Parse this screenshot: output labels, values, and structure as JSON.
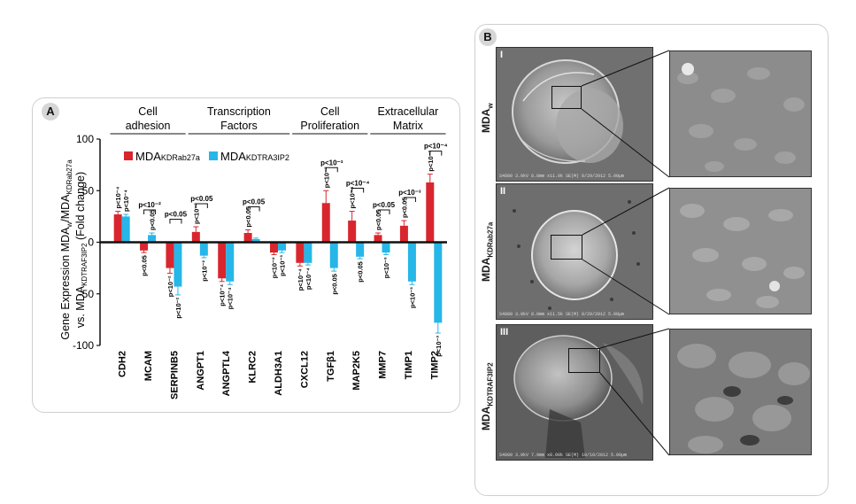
{
  "panel_a": {
    "badge": "A",
    "chart_data": {
      "type": "bar",
      "ylabel_line1": "Gene Expression MDA",
      "ylabel_line1_sub": "w",
      "ylabel_line1_rest": "/MDA",
      "ylabel_line1_sub2": "KDRab27a",
      "ylabel_line2": "vs. MDA",
      "ylabel_line2_sub": "KDTRAF3IP2",
      "ylabel_line2_rest": " (Fold change)",
      "ylim": [
        -100,
        100
      ],
      "yticks": [
        "100",
        "50",
        "0",
        "-50",
        "-100"
      ],
      "yticks_values": [
        100,
        50,
        0,
        -50,
        -100
      ],
      "categories": [
        "CDH2",
        "MCAM",
        "SERPINB5",
        "ANGPT1",
        "ANGPTL4",
        "KLRC2",
        "ALDH3A1",
        "CXCL12",
        "TGFβ1",
        "MAP2K5",
        "MMP7",
        "TIMP1",
        "TIMP2"
      ],
      "groups": [
        {
          "label_line1": "Cell",
          "label_line2": "adhesion",
          "from": 0,
          "to": 2
        },
        {
          "label_line1": "Transcription",
          "label_line2": "Factors",
          "from": 3,
          "to": 6
        },
        {
          "label_line1": "Cell",
          "label_line2": "Proliferation",
          "from": 7,
          "to": 9
        },
        {
          "label_line1": "Extracellular",
          "label_line2": "Matrix",
          "from": 10,
          "to": 12
        }
      ],
      "series": [
        {
          "name": "MDA",
          "name_sub": "KDRab27a",
          "color": "#d9262e",
          "values": [
            27,
            -8,
            -25,
            10,
            -35,
            9,
            -10,
            -20,
            38,
            21,
            7,
            16,
            58
          ],
          "errors": [
            3,
            2,
            5,
            5,
            3,
            3,
            2,
            3,
            12,
            9,
            2,
            5,
            8
          ],
          "pvalues": [
            "p<10⁻⁴",
            "p<0.05",
            "p<10⁻²",
            "p<10⁻²",
            "p<10⁻⁴",
            "p<0.05",
            "p<10⁻²",
            "p<10⁻⁴",
            "p<10⁻²",
            "p<10⁻⁴",
            "p<0.05",
            "p<0.05",
            "p<10⁻²"
          ]
        },
        {
          "name": "MDA",
          "name_sub": "KDTRA3IP2",
          "color": "#27b6e8",
          "values": [
            25,
            7,
            -43,
            -13,
            -38,
            3,
            -8,
            -20,
            -25,
            -14,
            -10,
            -38,
            -78
          ],
          "errors": [
            2,
            2,
            8,
            2,
            3,
            1,
            2,
            2,
            3,
            2,
            2,
            3,
            10
          ],
          "pvalues": [
            "p<10⁻⁴",
            "p<0.05",
            "p<10⁻²",
            "p<10⁻²",
            "p<10⁻⁴",
            "",
            "p<10⁻³",
            "p<10⁻⁴",
            "p<0.05",
            "p<0.05",
            "p<10⁻³",
            "p<10⁻³",
            "p<10⁻³"
          ]
        }
      ],
      "brackets": [
        {
          "cat": 1,
          "text": "p<10⁻²"
        },
        {
          "cat": 2,
          "text": "p<0.05"
        },
        {
          "cat": 3,
          "text": "p<0.05"
        },
        {
          "cat": 5,
          "text": "p<0.05"
        },
        {
          "cat": 8,
          "text": "p<10⁻³"
        },
        {
          "cat": 9,
          "text": "p<10⁻⁴"
        },
        {
          "cat": 10,
          "text": "p<0.05"
        },
        {
          "cat": 11,
          "text": "p<10⁻³"
        },
        {
          "cat": 12,
          "text": "p<10⁻⁴"
        }
      ]
    }
  },
  "panel_b": {
    "badge": "B",
    "rows": [
      {
        "roman": "I",
        "label": "MDA",
        "label_sub": "w",
        "scale_text": "S4800 3.0kV 8.8mm x11.0k SE(M) 8/29/2012    5.00µm"
      },
      {
        "roman": "II",
        "label": "MDA",
        "label_sub": "KDRab27a",
        "scale_text": "S4800 3.0kV 8.8mm x11.5k SE(M) 8/29/2012    5.00µm"
      },
      {
        "roman": "III",
        "label": "MDA",
        "label_sub": "KDTRAF3IP2",
        "scale_text": "S4800 3.0kV 7.9mm x8.00k SE(M) 10/10/2012    5.00µm"
      }
    ],
    "colors": {
      "sem_bg": "#6d6d6d",
      "sem_cell": "#bdbdbd"
    }
  }
}
